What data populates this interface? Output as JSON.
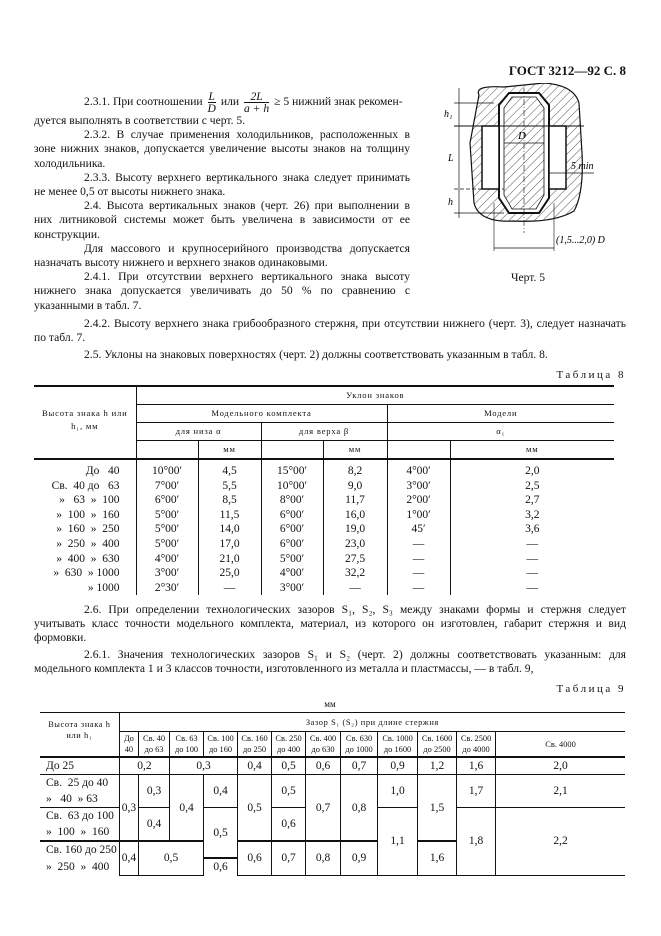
{
  "header": {
    "title": "ГОСТ 3212—92 С. 8"
  },
  "para_2_3_1": {
    "lead": "2.3.1. При соотношении",
    "f1_num": "L",
    "f1_den": "D",
    "or": "или",
    "f2_num": "2L",
    "f2_den": "a + h",
    "tail": "≥ 5 нижний знак рекомен-",
    "line2": "дуется выполнять в соответствии с черт. 5."
  },
  "paragraphs_left": [
    "2.3.2. В случае применения холодильников, расположенных в зоне нижних знаков, допускается увеличение высоты знаков на толщину холодильника.",
    "2.3.3. Высоту верхнего вертикального знака следует принимать не менее 0,5 от высоты нижнего знака.",
    "2.4. Высота вертикальных знаков (черт. 26) при выполнении в них литниковой системы может быть увеличена в зависимости от ее конструкции.",
    "Для массового и крупносерийного производства допускается назначать высоту нижнего и верхнего знаков одинаковыми.",
    "2.4.1. При отсутствии верхнего вертикального знака высоту нижнего знака допускается увеличивать до 50 % по сравнению с указанными в табл. 7."
  ],
  "figure": {
    "label_h1": "h₁",
    "label_L": "L",
    "label_h": "h",
    "label_D": "D",
    "label_5min": "5 min",
    "label_width": "(1,5...2,0) D",
    "caption": "Черт. 5"
  },
  "paragraphs_full": [
    "2.4.2. Высоту верхнего знака грибообразного стержня, при отсутствии нижнего (черт. 3), следует назначать по табл. 7.",
    "2.5. Уклоны на знаковых поверхностях (черт. 2) должны соответствовать указанным в табл. 8."
  ],
  "table8": {
    "caption": "Таблица 8",
    "h_height": "Высота знака h или h₁, мм",
    "h_slope": "Уклон знаков",
    "h_model_kit": "Модельного комплекта",
    "h_model": "Модели",
    "h_bottom": "для низа α",
    "h_top": "для верха β",
    "h_alpha1": "α₁",
    "h_mm": "мм",
    "rows": [
      [
        "До   40",
        "10°00′",
        "4,5",
        "15°00′",
        "8,2",
        "4°00′",
        "2,0"
      ],
      [
        "Св.  40 до   63",
        "7°00′",
        "5,5",
        "10°00′",
        "9,0",
        "3°00′",
        "2,5"
      ],
      [
        "»   63  »  100",
        "6°00′",
        "8,5",
        "8°00′",
        "11,7",
        "2°00′",
        "2,7"
      ],
      [
        "»  100  »  160",
        "5°00′",
        "11,5",
        "6°00′",
        "16,0",
        "1°00′",
        "3,2"
      ],
      [
        "»  160  »  250",
        "5°00′",
        "14,0",
        "6°00′",
        "19,0",
        "45′",
        "3,6"
      ],
      [
        "»  250  »  400",
        "5°00′",
        "17,0",
        "6°00′",
        "23,0",
        "—",
        "—"
      ],
      [
        "»  400  »  630",
        "4°00′",
        "21,0",
        "5°00′",
        "27,5",
        "—",
        "—"
      ],
      [
        "»  630  » 1000",
        "3°00′",
        "25,0",
        "4°00′",
        "32,2",
        "—",
        "—"
      ],
      [
        "» 1000",
        "2°30′",
        "—",
        "3°00′",
        "—",
        "—",
        "—"
      ]
    ]
  },
  "para_2_6": "2.6. При определении технологических зазоров S₁, S₂, S₃ между знаками формы и стержня следует учитывать класс точности модельного комплекта, материал, из которого он изготовлен, габарит стержня и вид формовки.",
  "para_2_6_1": "2.6.1. Значения технологических зазоров S₁ и S₂ (черт. 2) должны соответствовать указанным: для модельного комплекта 1 и 3 классов точности, изготовленного из металла и пластмассы, — в табл. 9,",
  "table9": {
    "caption": "Таблица 9",
    "unit": "мм",
    "h_height": "Высота знака h или h₁",
    "h_gap": "Зазор S₁ (S₂) при длине стержня",
    "columns": [
      "До 40",
      "Св. 40 до 63",
      "Св. 63 до 100",
      "Св. 100 до 160",
      "Св. 160 до 250",
      "Св. 250 до 400",
      "Св. 400 до 630",
      "Св. 630 до 1000",
      "Св. 1000 до 1600",
      "Св. 1600 до 2500",
      "Св. 2500 до 4000",
      "Св. 4000"
    ],
    "rows": [
      {
        "label": "До 25",
        "cells": [
          "0,2",
          "0,3",
          "0,4",
          "0,5",
          "0,6",
          "0,7",
          "0,9",
          "1,2",
          "1,6",
          "2,0"
        ]
      },
      {
        "label": "Св.  25 до 40",
        "cells": [
          "0,3",
          "0,3",
          "0,4",
          "0,4",
          "0,5",
          "0,5",
          "0,7",
          "0,8",
          "1,0",
          "1,5",
          "1,7",
          "2,1"
        ]
      },
      {
        "label": "»   40  » 63",
        "cells": []
      },
      {
        "label": "Св.  63 до 100",
        "cells": [
          "0,4",
          "0,5",
          "0,6",
          "1,1",
          "1,8",
          "2,2"
        ]
      },
      {
        "label": "»  100  »  160",
        "cells": []
      },
      {
        "label": "Св. 160 до 250",
        "cells": [
          "0,4",
          "0,5",
          "0,6",
          "0,7",
          "0,8",
          "0,9",
          "1,6"
        ]
      },
      {
        "label": "»  250  »  400",
        "cells": [
          "0,6"
        ]
      }
    ]
  }
}
